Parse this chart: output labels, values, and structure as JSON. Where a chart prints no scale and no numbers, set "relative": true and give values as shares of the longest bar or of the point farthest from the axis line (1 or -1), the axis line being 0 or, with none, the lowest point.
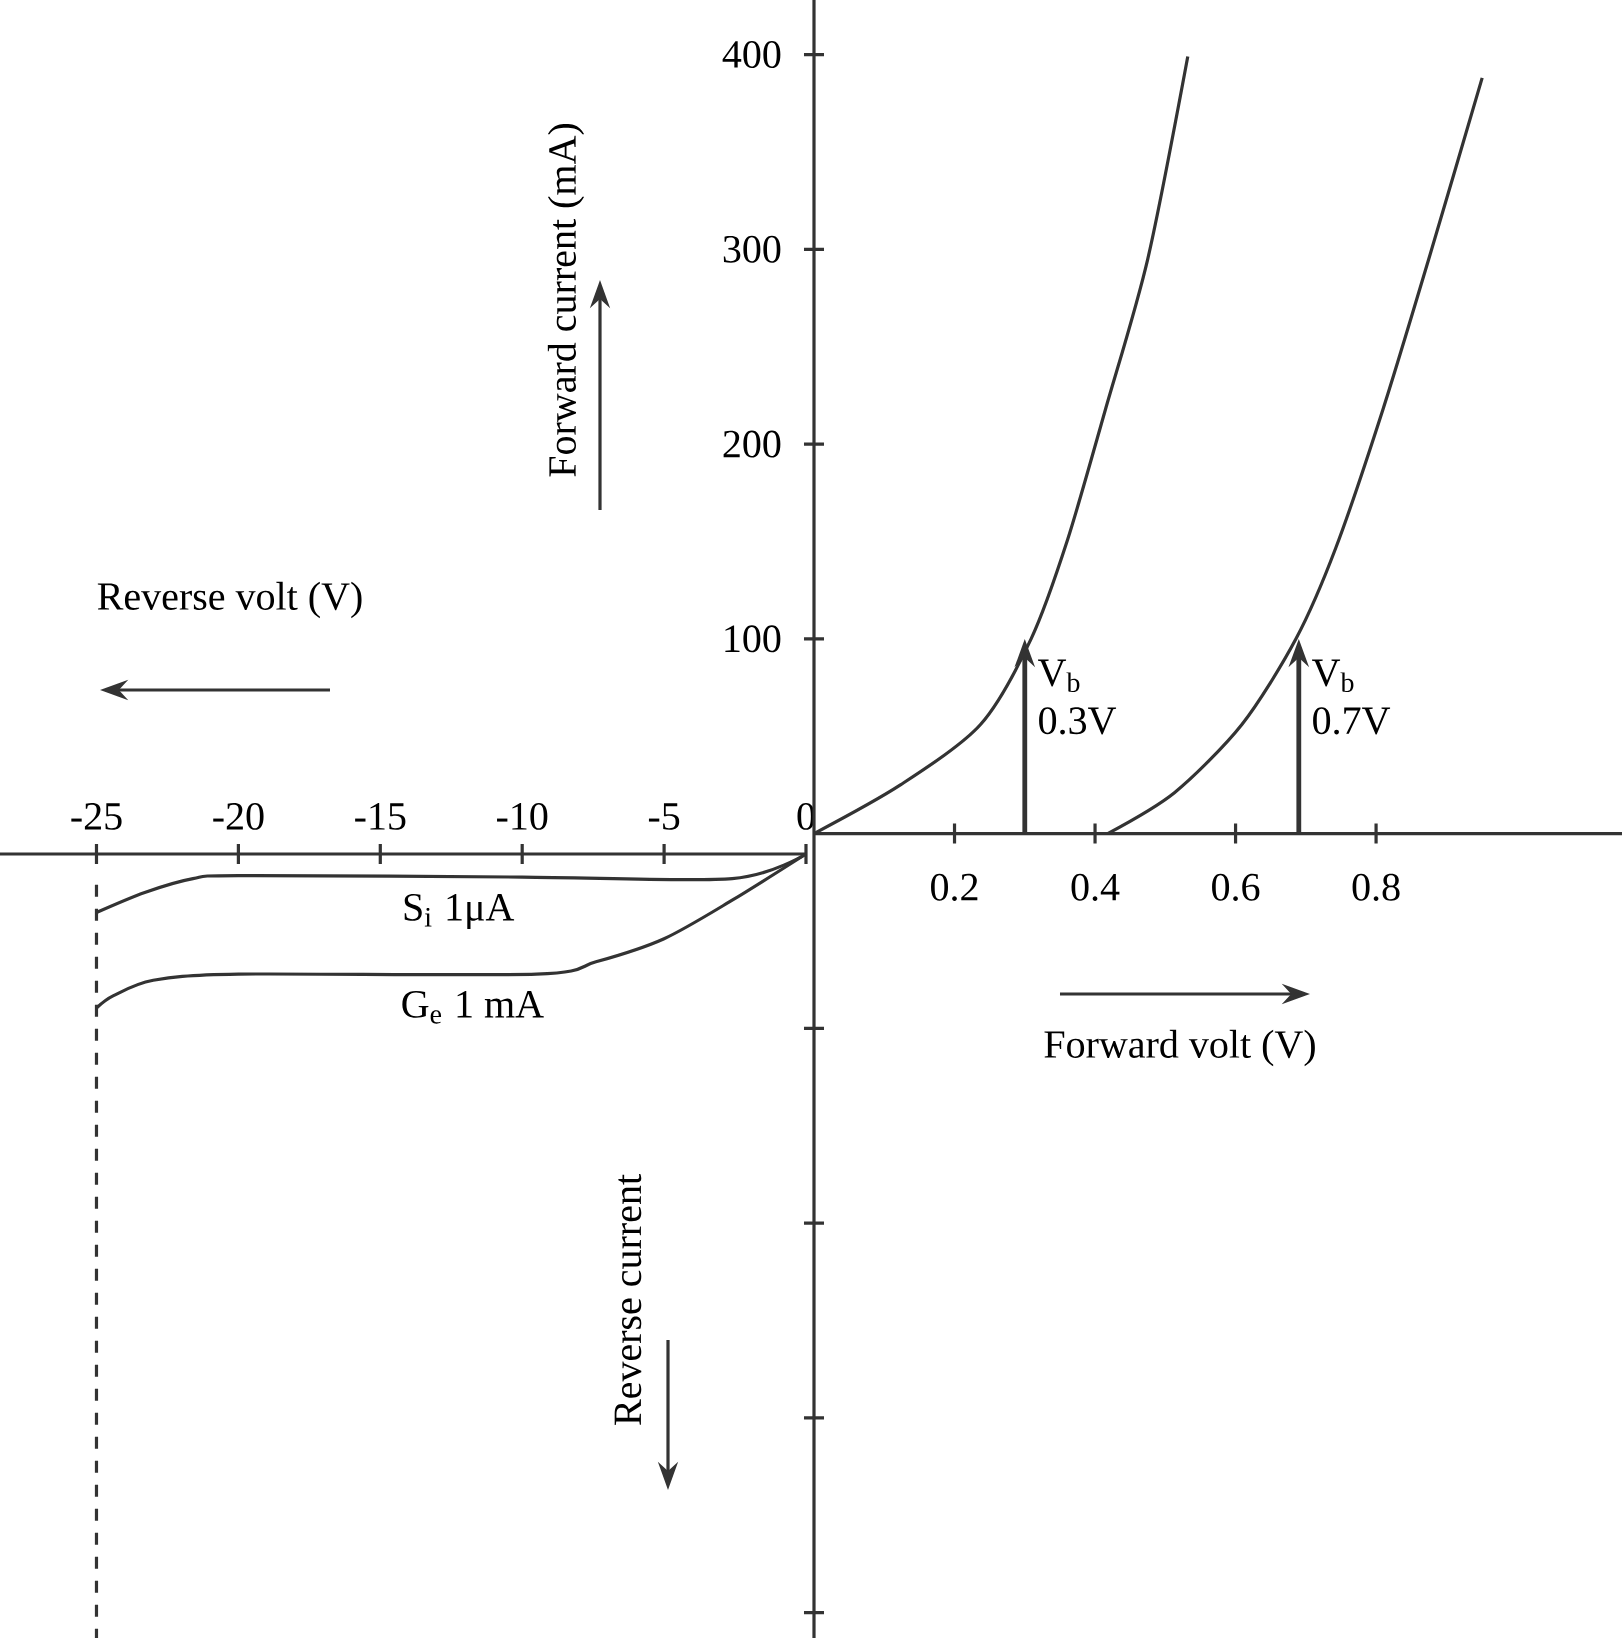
{
  "chart_data": [
    {
      "type": "line",
      "xlabel": "Reverse volt (V)",
      "relative": true,
      "xlim": [
        -28.4,
        0
      ],
      "xticks": [
        -25,
        -20,
        -15,
        -10,
        -5,
        0
      ],
      "tick_labels": "x",
      "ref_lines": [
        {
          "axis": "x",
          "value": -25,
          "line_style": "dashed"
        }
      ],
      "series": [
        {
          "name": "S$_{i}$ 1μA",
          "color": "#333333",
          "x": [
            -25,
            -23.3,
            -21.6,
            -20,
            -10,
            -2.6,
            0
          ],
          "values": [
            -0.38,
            -0.25,
            -0.16,
            -0.14,
            -0.15,
            -0.16,
            0
          ]
        },
        {
          "name": "G$_{e}$ 1 mA",
          "color": "#333333",
          "x": [
            -25,
            -24.4,
            -23,
            -20,
            -9.5,
            -7.4,
            -5,
            -2.6,
            0
          ],
          "values": [
            -1,
            -0.92,
            -0.82,
            -0.78,
            -0.78,
            -0.7,
            -0.55,
            -0.3,
            0
          ]
        }
      ]
    },
    {
      "type": "line",
      "xlabel": "Forward volt (V)",
      "ylabel": "Forward current (mA)",
      "xlim": [
        0,
        1.15
      ],
      "xticks": [
        0.2,
        0.4,
        0.6,
        0.8
      ],
      "ylim": [
        -413,
        428
      ],
      "yticks": [
        {
          "value": -400,
          "label": null
        },
        {
          "value": -300,
          "label": null
        },
        {
          "value": -200,
          "label": null
        },
        {
          "value": -100,
          "label": null
        },
        100,
        200,
        300,
        400
      ],
      "annotations": [
        "Reverse current",
        {
          "text": "V$_{b}$ 0.3V",
          "x": 0.3,
          "y": 100
        },
        {
          "text": "V$_{b}$ 0.7V",
          "x": 0.69,
          "y": 100
        }
      ],
      "series": [
        {
          "color": "#333333",
          "x": [
            0,
            0.123,
            0.237,
            0.309,
            0.361,
            0.415,
            0.475,
            0.532
          ],
          "values": [
            0,
            25,
            56,
            100,
            151,
            218,
            295,
            399
          ]
        },
        {
          "color": "#333333",
          "x": [
            0.418,
            0.513,
            0.609,
            0.686,
            0.743,
            0.81,
            0.875,
            0.951
          ],
          "values": [
            0,
            21,
            56,
            100,
            147,
            218,
            295,
            388
          ]
        }
      ]
    }
  ]
}
